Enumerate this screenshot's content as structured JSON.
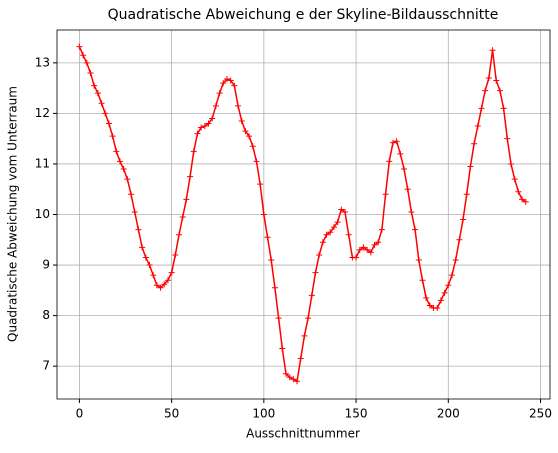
{
  "chart_data": {
    "type": "line",
    "title": "Quadratische Abweichung e der Skyline-Bildausschnitte",
    "xlabel": "Ausschnittnummer",
    "ylabel": "Quadratische Abweichung vom Unterraum",
    "x": [
      0,
      2,
      4,
      6,
      8,
      10,
      12,
      14,
      16,
      18,
      20,
      22,
      24,
      26,
      28,
      30,
      32,
      34,
      36,
      38,
      40,
      42,
      44,
      46,
      48,
      50,
      52,
      54,
      56,
      58,
      60,
      62,
      64,
      66,
      68,
      70,
      72,
      74,
      76,
      78,
      80,
      82,
      84,
      86,
      88,
      90,
      92,
      94,
      96,
      98,
      100,
      102,
      104,
      106,
      108,
      110,
      112,
      114,
      116,
      118,
      120,
      122,
      124,
      126,
      128,
      130,
      132,
      134,
      136,
      138,
      140,
      142,
      144,
      146,
      148,
      150,
      152,
      154,
      156,
      158,
      160,
      162,
      164,
      166,
      168,
      170,
      172,
      174,
      176,
      178,
      180,
      182,
      184,
      186,
      188,
      190,
      192,
      194,
      196,
      198,
      200,
      202,
      204,
      206,
      208,
      210,
      212,
      214,
      216,
      218,
      220,
      222,
      224,
      226,
      228,
      230,
      232,
      234,
      236,
      238,
      240,
      242
    ],
    "series": [
      {
        "name": "e",
        "color": "#ff0000",
        "values": [
          13.32,
          13.15,
          13.0,
          12.8,
          12.55,
          12.4,
          12.2,
          12.0,
          11.8,
          11.55,
          11.25,
          11.05,
          10.9,
          10.7,
          10.4,
          10.05,
          9.7,
          9.35,
          9.15,
          9.0,
          8.8,
          8.6,
          8.55,
          8.62,
          8.7,
          8.85,
          9.2,
          9.6,
          9.95,
          10.3,
          10.75,
          11.25,
          11.6,
          11.72,
          11.75,
          11.8,
          11.9,
          12.15,
          12.4,
          12.6,
          12.68,
          12.65,
          12.55,
          12.15,
          11.85,
          11.65,
          11.55,
          11.35,
          11.05,
          10.6,
          10.0,
          9.55,
          9.1,
          8.55,
          7.95,
          7.35,
          6.85,
          6.78,
          6.74,
          6.7,
          7.15,
          7.6,
          7.95,
          8.4,
          8.85,
          9.2,
          9.45,
          9.6,
          9.65,
          9.75,
          9.85,
          10.1,
          10.05,
          9.6,
          9.15,
          9.15,
          9.3,
          9.35,
          9.3,
          9.25,
          9.4,
          9.45,
          9.7,
          10.4,
          11.05,
          11.42,
          11.45,
          11.2,
          10.9,
          10.5,
          10.05,
          9.7,
          9.1,
          8.7,
          8.35,
          8.2,
          8.15,
          8.15,
          8.3,
          8.45,
          8.6,
          8.8,
          9.1,
          9.5,
          9.9,
          10.4,
          10.95,
          11.4,
          11.75,
          12.1,
          12.45,
          12.7,
          13.25,
          12.65,
          12.45,
          12.1,
          11.5,
          11.0,
          10.7,
          10.45,
          10.3,
          10.25
        ]
      }
    ],
    "xlim": [
      -12.15,
      255.15
    ],
    "ylim": [
      6.35,
      13.65
    ],
    "xticks": [
      0,
      50,
      100,
      150,
      200,
      250
    ],
    "yticks": [
      7,
      8,
      9,
      10,
      11,
      12,
      13
    ],
    "grid": true
  }
}
